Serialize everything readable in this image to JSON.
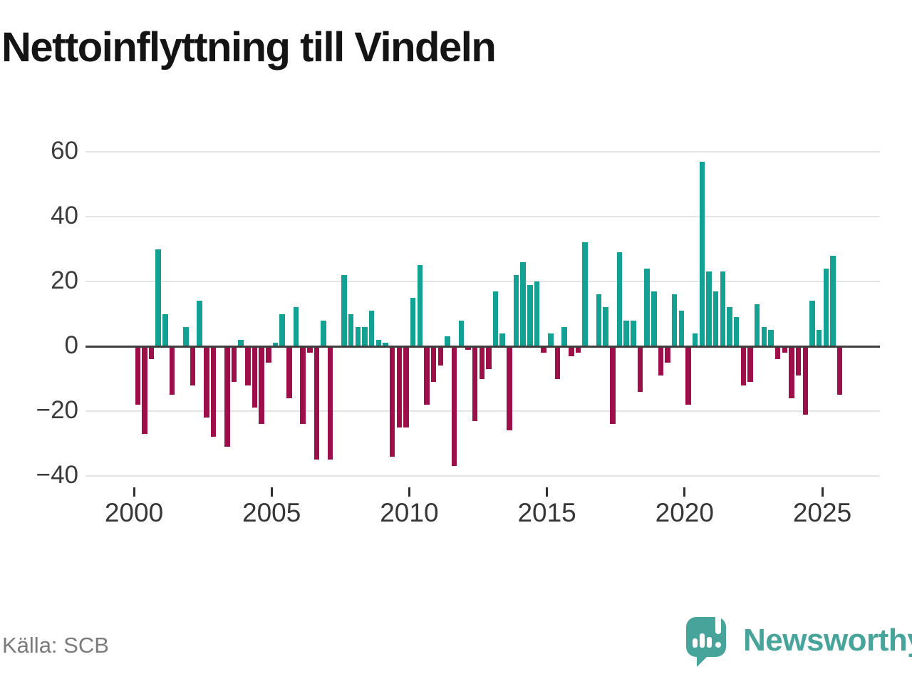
{
  "title": "Nettoinflyttning till Vindeln",
  "source": "Källa: SCB",
  "logo": {
    "brand": "Newsworthy"
  },
  "chart_data": {
    "type": "bar",
    "title": "Nettoinflyttning till Vindeln",
    "frequency": "quarterly",
    "start": "2000 Q1",
    "end": "2025 Q3",
    "values": [
      -18,
      -27,
      -4,
      30,
      10,
      -15,
      0,
      6,
      -12,
      14,
      -22,
      -28,
      0,
      -31,
      -11,
      2,
      -12,
      -19,
      -24,
      -5,
      1,
      10,
      -16,
      12,
      -24,
      -2,
      -35,
      8,
      -35,
      0,
      22,
      10,
      6,
      6,
      11,
      2,
      1,
      -34,
      -25,
      -25,
      15,
      25,
      -18,
      -11,
      -6,
      3,
      -37,
      8,
      -1,
      -23,
      -10,
      -7,
      17,
      4,
      -26,
      22,
      26,
      19,
      20,
      -2,
      4,
      -10,
      6,
      -3,
      -2,
      32,
      0,
      16,
      12,
      -24,
      29,
      8,
      8,
      -14,
      24,
      17,
      -9,
      -5,
      16,
      11,
      -18,
      4,
      57,
      23,
      17,
      23,
      12,
      9,
      -12,
      -11,
      13,
      6,
      5,
      -4,
      -2,
      -16,
      -9,
      -21,
      14,
      5,
      24,
      28,
      -15
    ],
    "yticks": [
      60,
      40,
      20,
      0,
      -20,
      -40
    ],
    "xticks": [
      2000,
      2005,
      2010,
      2015,
      2020,
      2025
    ],
    "ylim": [
      -40,
      60
    ],
    "grid": true,
    "legend": "none",
    "positive_color": "#12a192",
    "negative_color": "#9e0e49",
    "zero_line_color": "#3e3e3e"
  }
}
